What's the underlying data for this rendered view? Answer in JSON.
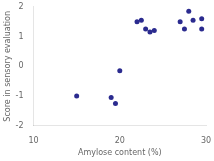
{
  "chart_data": {
    "type": "scatter",
    "x": [
      15,
      19,
      19.5,
      20,
      22,
      22.5,
      23,
      23.5,
      24,
      27,
      27.5,
      28,
      28.5,
      29.5,
      29.5
    ],
    "values": [
      -1.0,
      -1.05,
      -1.25,
      -0.15,
      1.5,
      1.55,
      1.25,
      1.15,
      1.2,
      1.5,
      1.25,
      1.85,
      1.55,
      1.6,
      1.25
    ],
    "color": "#2b2b8f",
    "xlabel": "Amylose content (%)",
    "ylabel": "Score in sensory evaluation",
    "xlim": [
      10,
      30
    ],
    "ylim": [
      -2,
      2
    ],
    "xticks": [
      10,
      20,
      30
    ],
    "yticks": [
      -2,
      -1,
      0,
      1,
      2
    ],
    "grid": false
  }
}
